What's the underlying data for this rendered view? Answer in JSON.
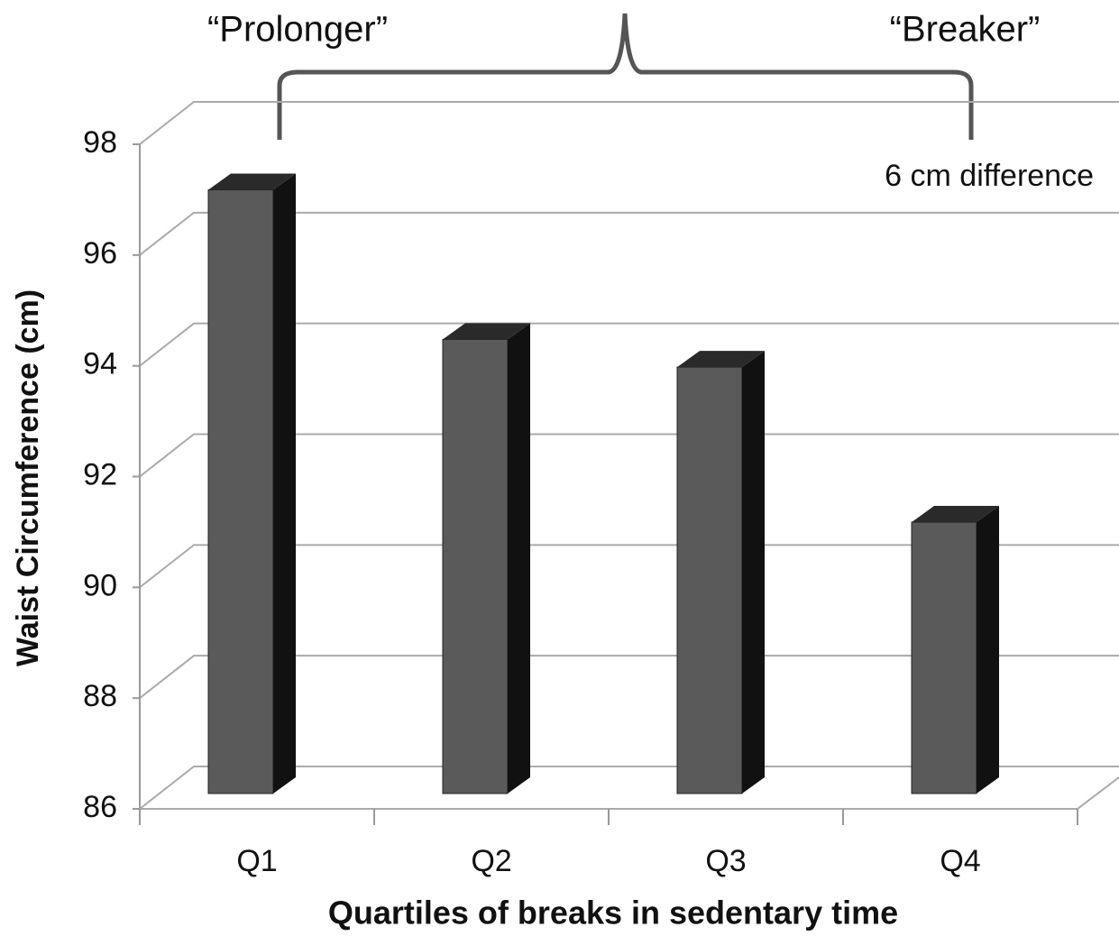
{
  "chart_data": {
    "type": "bar3d",
    "categories": [
      "Q1",
      "Q2",
      "Q3",
      "Q4"
    ],
    "values": [
      96.9,
      94.2,
      93.7,
      90.9
    ],
    "color": "#5a5a5a",
    "ylim": [
      86,
      98
    ],
    "yticks": [
      86,
      88,
      90,
      92,
      94,
      96,
      98
    ],
    "grid": true,
    "y_label": "Waist Circumference (cm)",
    "x_label": "Quartiles of breaks in sedentary time",
    "annotations": [
      "“Prolonger”",
      "“Breaker”",
      "6 cm difference"
    ]
  }
}
